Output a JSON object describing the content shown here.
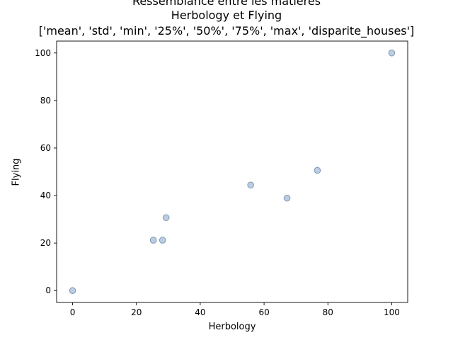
{
  "chart_data": {
    "type": "scatter",
    "title_lines": [
      "Ressemblance entre les matières",
      "Herbology et Flying",
      "['mean', 'std', 'min', '25%', '50%', '75%', 'max', 'disparite_houses']"
    ],
    "xlabel": "Herbology",
    "ylabel": "Flying",
    "xlim": [
      -5,
      105
    ],
    "ylim": [
      -5,
      105
    ],
    "xticks": [
      0,
      20,
      40,
      60,
      80,
      100
    ],
    "yticks": [
      0,
      20,
      40,
      60,
      80,
      100
    ],
    "grid": false,
    "marker_fill": "#b0c4de",
    "marker_edge": "#7f97b2",
    "points": [
      {
        "x": 0,
        "y": 0
      },
      {
        "x": 25.3,
        "y": 21.2
      },
      {
        "x": 28.2,
        "y": 21.2
      },
      {
        "x": 29.3,
        "y": 30.7
      },
      {
        "x": 55.8,
        "y": 44.4
      },
      {
        "x": 67.2,
        "y": 38.9
      },
      {
        "x": 76.7,
        "y": 50.6
      },
      {
        "x": 100,
        "y": 100
      }
    ]
  }
}
